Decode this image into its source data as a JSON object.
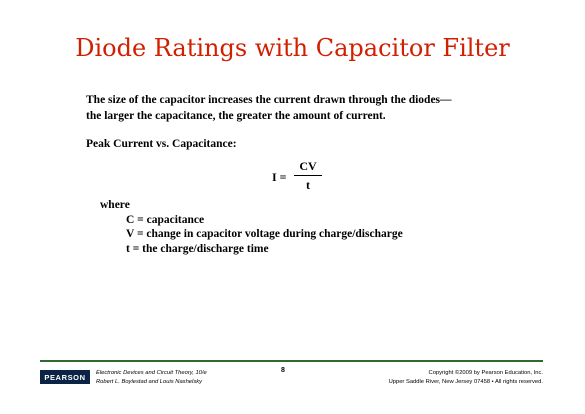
{
  "title": "Diode Ratings with Capacitor Filter",
  "intro": {
    "line1": "The size of the capacitor increases the current drawn through the diodes—",
    "line2": "the larger the capacitance, the greater the amount of current."
  },
  "subheading": "Peak Current vs. Capacitance:",
  "formula": {
    "lhs": "I =",
    "numerator": "CV",
    "denominator": "t"
  },
  "where": {
    "label": "where",
    "items": [
      "C = capacitance",
      "V = change in capacitor voltage during charge/discharge",
      "t  = the charge/discharge time"
    ]
  },
  "footer": {
    "logo": "PEARSON",
    "book_line1": "Electronic Devices and Circuit Theory, 10/e",
    "book_line2": "Robert L. Boylestad and Louis Nashelsky",
    "page_number": "8",
    "copyright_line1": "Copyright ©2009 by Pearson Education, Inc.",
    "copyright_line2": "Upper Saddle River, New Jersey 07458 • All rights reserved."
  },
  "colors": {
    "title": "#d11f00",
    "footer_rule": "#2f6b2f",
    "logo_bg": "#0b2445"
  }
}
